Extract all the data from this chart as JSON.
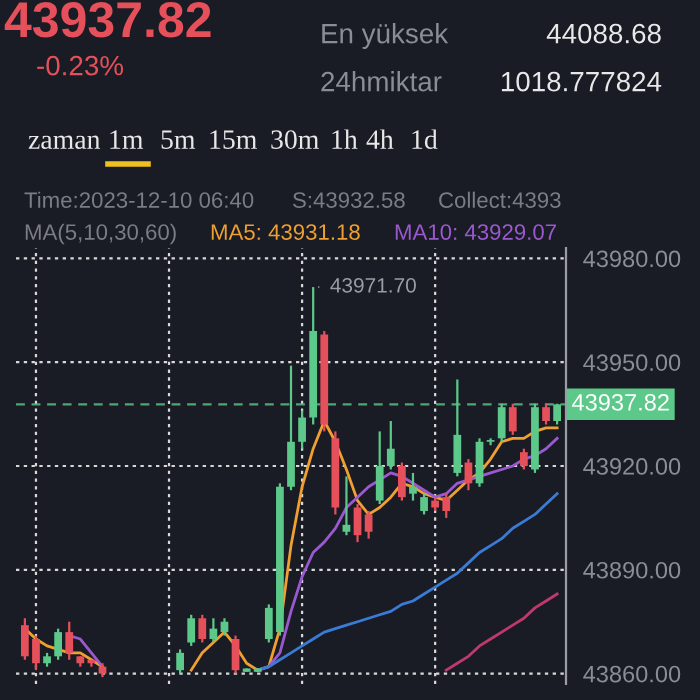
{
  "chart_data": {
    "type": "candlestick",
    "categories": [
      null,
      null,
      null,
      null,
      null,
      null,
      null,
      null,
      null,
      null,
      null,
      null,
      null,
      null,
      null,
      null,
      null,
      null,
      null,
      null,
      null,
      null,
      null,
      null,
      null,
      null,
      null,
      null,
      null,
      null,
      null,
      null,
      null,
      null,
      null,
      null,
      null,
      null,
      null,
      null,
      null,
      null,
      null,
      null,
      null,
      null,
      null,
      null,
      null
    ],
    "ohlc": [
      [
        43874,
        43876,
        43864,
        43865
      ],
      [
        43870,
        43871,
        43861,
        43863
      ],
      [
        43863,
        43866,
        43862,
        43865
      ],
      [
        43865,
        43873,
        43864,
        43872
      ],
      [
        43872,
        43875,
        43864,
        43866
      ],
      [
        43865,
        43865,
        43862,
        43863
      ],
      [
        43864,
        43864,
        43862,
        43863
      ],
      [
        43862,
        43863,
        43859,
        43860
      ],
      null,
      null,
      null,
      null,
      null,
      null,
      [
        43861,
        43867,
        43860,
        43866
      ],
      [
        43869,
        43877,
        43868,
        43876
      ],
      [
        43876,
        43877,
        43869,
        43870
      ],
      [
        43870,
        43876,
        43869,
        43873
      ],
      [
        43872,
        43876,
        43871,
        43875
      ],
      [
        43870,
        43871,
        43860,
        43861
      ],
      [
        43861,
        43861.5,
        43860.5,
        43861
      ],
      [
        43861,
        43861.5,
        43860.5,
        43861
      ],
      [
        43870,
        43880,
        43869,
        43879
      ],
      [
        43872,
        43915,
        43871,
        43914
      ],
      [
        43914,
        43949,
        43913,
        43927
      ],
      [
        43927,
        43936,
        43925,
        43934
      ],
      [
        43934,
        43971.7,
        43932,
        43959
      ],
      [
        43958,
        43959,
        43930,
        43932
      ],
      [
        43928,
        43930,
        43906,
        43908
      ],
      [
        43901,
        43917,
        43900,
        43903
      ],
      [
        43908,
        43909,
        43898,
        43900
      ],
      [
        43906,
        43907,
        43899,
        43901
      ],
      [
        43910,
        43930,
        43909,
        43920
      ],
      [
        43920,
        43933,
        43919,
        43925
      ],
      [
        43920,
        43921,
        43910,
        43911
      ],
      [
        43912,
        43918,
        43910,
        43914
      ],
      [
        43907,
        43912,
        43906,
        43911
      ],
      [
        43910,
        43911,
        43907,
        43908
      ],
      [
        43911,
        43912,
        43905,
        43907
      ],
      [
        43918,
        43945,
        43917,
        43929
      ],
      [
        43921,
        43922,
        43913,
        43915
      ],
      [
        43915,
        43928,
        43914,
        43927
      ],
      [
        43927,
        43928,
        43926,
        43927.5
      ],
      [
        43928,
        43938,
        43927,
        43937
      ],
      [
        43937,
        43938,
        43929,
        43930
      ],
      [
        43924,
        43925,
        43919,
        43920
      ],
      [
        43919,
        43938,
        43918,
        43937
      ],
      [
        43937,
        43938,
        43932,
        43933
      ],
      [
        43933,
        43938,
        43932,
        43937.82
      ]
    ],
    "series": [
      {
        "type": "line",
        "name": "MA5: 43931.18",
        "color": "#f0a030",
        "values": [
          43873,
          43870,
          43868,
          43867,
          43866,
          43866,
          43864,
          43862,
          null,
          null,
          null,
          null,
          null,
          null,
          null,
          43861,
          43866,
          43869,
          43872,
          43868,
          43863,
          43861,
          43862,
          43873,
          43897,
          43914,
          43925,
          43933,
          43927,
          43919,
          43910,
          43906,
          43908,
          43911,
          43915,
          43914,
          43912,
          43911,
          43910,
          43913,
          43916,
          43918,
          43922,
          43927,
          43928,
          43928,
          43930,
          43931,
          43931
        ]
      },
      {
        "type": "line",
        "name": "MA10: 43929.07",
        "color": "#9b59d0",
        "values": [
          null,
          null,
          null,
          null,
          43871,
          43870,
          43866,
          43862,
          null,
          null,
          null,
          null,
          null,
          null,
          null,
          null,
          null,
          null,
          null,
          null,
          null,
          43861,
          43862,
          43866,
          43878,
          43888,
          43895,
          43898,
          43902,
          43908,
          43911,
          43914,
          43916,
          43918,
          43917,
          43915,
          43913,
          43911,
          43912,
          43915,
          43916,
          43917,
          43918,
          43919,
          43920,
          43922,
          43923,
          43925,
          43928
        ]
      },
      {
        "type": "line",
        "color": "#3a7bd5",
        "values": [
          null,
          null,
          null,
          null,
          null,
          null,
          null,
          null,
          null,
          null,
          null,
          null,
          null,
          null,
          null,
          null,
          null,
          null,
          null,
          null,
          null,
          43861,
          43862,
          43864,
          43866,
          43868,
          43870,
          43872,
          43873,
          43874,
          43875,
          43876,
          43877,
          43878,
          43880,
          43881,
          43883,
          43885,
          43887,
          43889,
          43892,
          43895,
          43897,
          43899,
          43902,
          43904,
          43906,
          43909,
          43912
        ]
      },
      {
        "type": "line",
        "color": "#c0396b",
        "values": [
          null,
          null,
          null,
          null,
          null,
          null,
          null,
          null,
          null,
          null,
          null,
          null,
          null,
          null,
          null,
          null,
          null,
          null,
          null,
          null,
          null,
          null,
          null,
          null,
          null,
          null,
          null,
          null,
          null,
          null,
          null,
          null,
          null,
          null,
          null,
          null,
          null,
          null,
          43861,
          43863,
          43865,
          43868,
          43870,
          43872,
          43874,
          43876,
          43879,
          43881,
          43883
        ]
      }
    ],
    "ylim": [
      43857,
      43983
    ],
    "yticks": [
      {
        "value": 43860,
        "label": "43860.00"
      },
      {
        "value": 43890,
        "label": "43890.00"
      },
      {
        "value": 43920,
        "label": "43920.00"
      },
      {
        "value": 43950,
        "label": "43950.00"
      },
      {
        "value": 43980,
        "label": "43980.00"
      }
    ],
    "tick_labels": "y",
    "grid": true,
    "ref_lines": [
      {
        "axis": "y",
        "value": 43937.82,
        "label": "43937.82",
        "color": "#5cc98a",
        "line_style": "dashed"
      }
    ],
    "annotations": [
      "43937.82",
      "-0.23%",
      "En yüksek",
      "44088.68",
      "24hmiktar",
      "1018.777824",
      "zaman",
      "1m",
      "5m",
      "15m",
      "30m",
      "1h",
      "4h",
      "1d",
      "Time:2023-12-10 06:40",
      "S:43932.58",
      "Collect:4393",
      "MA(5,10,30,60)",
      "43971.70"
    ]
  }
}
